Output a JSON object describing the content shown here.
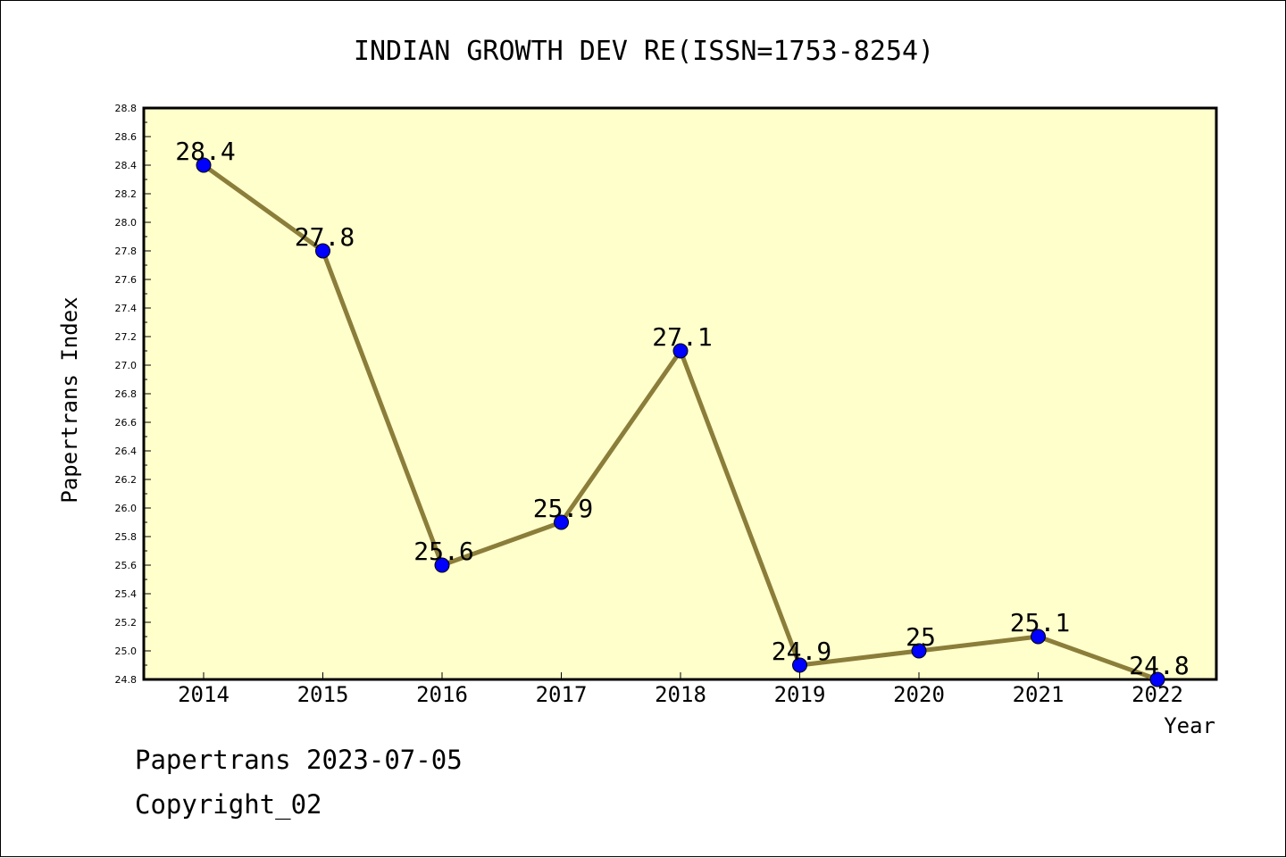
{
  "chart_data": {
    "type": "line",
    "title": "INDIAN GROWTH DEV RE(ISSN=1753-8254)",
    "xlabel": "Year",
    "ylabel": "Papertrans Index",
    "x": [
      "2014",
      "2015",
      "2016",
      "2017",
      "2018",
      "2019",
      "2020",
      "2021",
      "2022"
    ],
    "values": [
      28.4,
      27.8,
      25.6,
      25.9,
      27.1,
      24.9,
      25.0,
      25.1,
      24.8
    ],
    "data_labels": [
      "28.4",
      "27.8",
      "25.6",
      "25.9",
      "27.1",
      "24.9",
      "25",
      "25.1",
      "24.8"
    ],
    "ylim": [
      24.8,
      28.8
    ],
    "yticks": [
      "24.8",
      "25.0",
      "25.2",
      "25.4",
      "25.6",
      "25.8",
      "26.0",
      "26.2",
      "26.4",
      "26.6",
      "26.8",
      "27.0",
      "27.2",
      "27.4",
      "27.6",
      "27.8",
      "28.0",
      "28.2",
      "28.4",
      "28.6",
      "28.8"
    ],
    "grid": false,
    "colors": {
      "plot_background": "#ffffcc",
      "line": "#8b7d3a",
      "marker": "#0000ff"
    }
  },
  "footer": {
    "line1": "Papertrans 2023-07-05",
    "line2": "Copyright_02"
  }
}
